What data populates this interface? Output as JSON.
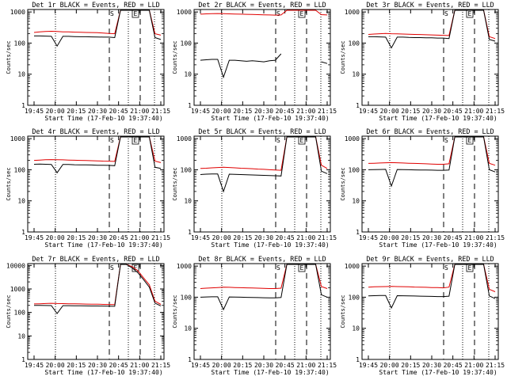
{
  "chart_data": [
    {
      "type": "line",
      "title": "Det 1r BLACK = Events, RED = LLD",
      "xlabel": "Start Time (17-Feb-10 19:37:40)",
      "ylabel": "Counts/sec",
      "yscale": "log",
      "ylim": [
        1,
        1200
      ],
      "xticks": [
        "19:45",
        "20:00",
        "20:15",
        "20:30",
        "20:45",
        "21:00",
        "21:15"
      ],
      "yticks": [
        "1",
        "10",
        "100",
        "1000"
      ],
      "markers": [
        "S",
        "E"
      ],
      "series": [
        {
          "color": "#e00000",
          "values": [
            220,
            230,
            235,
            240,
            235,
            230,
            228,
            225,
            222,
            220,
            218,
            215,
            210,
            205,
            200,
            1200,
            1200,
            1200,
            1200,
            1200,
            1200,
            200,
            180
          ]
        },
        {
          "color": "#000000",
          "values": [
            170,
            170,
            168,
            165,
            80,
            165,
            165,
            162,
            160,
            160,
            158,
            157,
            155,
            155,
            150,
            1200,
            1200,
            1200,
            1200,
            1200,
            1200,
            150,
            130
          ]
        }
      ]
    },
    {
      "type": "line",
      "title": "Det 2r BLACK = Events, RED = LLD",
      "xlabel": "Start Time (17-Feb-10 19:37:40)",
      "ylabel": "Counts/sec",
      "yscale": "log",
      "ylim": [
        1,
        1200
      ],
      "xticks": [
        "19:45",
        "20:00",
        "20:15",
        "20:30",
        "20:45",
        "21:00",
        "21:15"
      ],
      "yticks": [
        "1",
        "10",
        "100",
        "1000"
      ],
      "markers": [
        "S",
        "E"
      ],
      "series": [
        {
          "color": "#e00000",
          "values": [
            850,
            870,
            880,
            890,
            880,
            870,
            860,
            850,
            840,
            830,
            820,
            810,
            800,
            790,
            800,
            1200,
            1200,
            1200,
            1200,
            1200,
            1200,
            820,
            800
          ]
        },
        {
          "color": "#000000",
          "values": [
            28,
            29,
            30,
            30,
            8,
            28,
            28,
            27,
            26,
            27,
            26,
            25,
            27,
            28,
            45,
            null,
            null,
            null,
            null,
            null,
            null,
            25,
            22
          ]
        }
      ]
    },
    {
      "type": "line",
      "title": "Det 3r BLACK = Events, RED = LLD",
      "xlabel": "Start Time (17-Feb-10 19:37:40)",
      "ylabel": "Counts/sec",
      "yscale": "log",
      "ylim": [
        1,
        1200
      ],
      "xticks": [
        "19:45",
        "20:00",
        "20:15",
        "20:30",
        "20:45",
        "21:00",
        "21:15"
      ],
      "yticks": [
        "1",
        "10",
        "100",
        "1000"
      ],
      "markers": [
        "S",
        "E"
      ],
      "series": [
        {
          "color": "#e00000",
          "values": [
            190,
            195,
            200,
            205,
            200,
            198,
            195,
            192,
            190,
            188,
            185,
            183,
            180,
            178,
            175,
            1200,
            1200,
            1200,
            1200,
            1200,
            1200,
            160,
            140
          ]
        },
        {
          "color": "#000000",
          "values": [
            160,
            160,
            158,
            155,
            70,
            155,
            155,
            152,
            150,
            150,
            148,
            147,
            145,
            145,
            140,
            1200,
            1200,
            1200,
            1200,
            1200,
            1200,
            130,
            115
          ]
        }
      ]
    },
    {
      "type": "line",
      "title": "Det 4r BLACK = Events, RED = LLD",
      "xlabel": "Start Time (17-Feb-10 19:37:40)",
      "ylabel": "Counts/sec",
      "yscale": "log",
      "ylim": [
        1,
        1200
      ],
      "xticks": [
        "19:45",
        "20:00",
        "20:15",
        "20:30",
        "20:45",
        "21:00",
        "21:15"
      ],
      "yticks": [
        "1",
        "10",
        "100",
        "1000"
      ],
      "markers": [
        "S",
        "E"
      ],
      "series": [
        {
          "color": "#e00000",
          "values": [
            200,
            205,
            210,
            212,
            210,
            208,
            205,
            202,
            200,
            198,
            195,
            193,
            190,
            188,
            185,
            1200,
            1200,
            1200,
            1200,
            1200,
            1200,
            190,
            170
          ]
        },
        {
          "color": "#000000",
          "values": [
            150,
            152,
            150,
            148,
            80,
            148,
            147,
            145,
            144,
            143,
            142,
            140,
            140,
            138,
            135,
            1200,
            1200,
            1200,
            1200,
            1200,
            1200,
            120,
            110
          ]
        }
      ]
    },
    {
      "type": "line",
      "title": "Det 5r BLACK = Events, RED = LLD",
      "xlabel": "Start Time (17-Feb-10 19:37:40)",
      "ylabel": "Counts/sec",
      "yscale": "log",
      "ylim": [
        1,
        1200
      ],
      "xticks": [
        "19:45",
        "20:00",
        "20:15",
        "20:30",
        "20:45",
        "21:00",
        "21:15"
      ],
      "yticks": [
        "1",
        "10",
        "100",
        "1000"
      ],
      "markers": [
        "S",
        "E"
      ],
      "series": [
        {
          "color": "#e00000",
          "values": [
            110,
            112,
            115,
            118,
            120,
            118,
            115,
            112,
            110,
            108,
            105,
            103,
            100,
            98,
            96,
            1200,
            1200,
            1200,
            1200,
            1200,
            1200,
            140,
            110
          ]
        },
        {
          "color": "#000000",
          "values": [
            70,
            72,
            73,
            73,
            20,
            72,
            71,
            70,
            69,
            68,
            67,
            66,
            65,
            64,
            63,
            1200,
            1200,
            1200,
            1200,
            1200,
            1200,
            90,
            75
          ]
        }
      ]
    },
    {
      "type": "line",
      "title": "Det 6r BLACK = Events, RED = LLD",
      "xlabel": "Start Time (17-Feb-10 19:37:40)",
      "ylabel": "Counts/sec",
      "yscale": "log",
      "ylim": [
        1,
        1200
      ],
      "xticks": [
        "19:45",
        "20:00",
        "20:15",
        "20:30",
        "20:45",
        "21:00",
        "21:15"
      ],
      "yticks": [
        "1",
        "10",
        "100",
        "1000"
      ],
      "markers": [
        "S",
        "E"
      ],
      "series": [
        {
          "color": "#e00000",
          "values": [
            160,
            162,
            165,
            168,
            170,
            168,
            165,
            162,
            160,
            158,
            155,
            153,
            150,
            150,
            155,
            1200,
            1200,
            1200,
            1200,
            1200,
            1200,
            160,
            140
          ]
        },
        {
          "color": "#000000",
          "values": [
            100,
            101,
            102,
            103,
            30,
            102,
            101,
            100,
            99,
            98,
            98,
            97,
            96,
            96,
            98,
            1200,
            1200,
            1200,
            1200,
            1200,
            1200,
            100,
            85
          ]
        }
      ]
    },
    {
      "type": "line",
      "title": "Det 7r BLACK = Events, RED = LLD",
      "xlabel": "Start Time (17-Feb-10 19:37:40)",
      "ylabel": "Counts/sec",
      "yscale": "log",
      "ylim": [
        1,
        12000
      ],
      "xticks": [
        "19:45",
        "20:00",
        "20:15",
        "20:30",
        "20:45",
        "21:00",
        "21:15"
      ],
      "yticks": [
        "1",
        "10",
        "100",
        "1000",
        "10000"
      ],
      "markers": [
        "S",
        "E"
      ],
      "series": [
        {
          "color": "#e00000",
          "values": [
            230,
            235,
            240,
            245,
            240,
            238,
            235,
            232,
            230,
            228,
            225,
            223,
            220,
            218,
            215,
            12000,
            12000,
            9000,
            6000,
            3000,
            1500,
            300,
            220
          ]
        },
        {
          "color": "#000000",
          "values": [
            200,
            200,
            198,
            196,
            90,
            195,
            194,
            193,
            192,
            190,
            189,
            188,
            187,
            185,
            183,
            12000,
            12000,
            8000,
            5000,
            2500,
            1200,
            250,
            190
          ]
        }
      ]
    },
    {
      "type": "line",
      "title": "Det 8r BLACK = Events, RED = LLD",
      "xlabel": "Start Time (17-Feb-10 19:37:40)",
      "ylabel": "Counts/sec",
      "yscale": "log",
      "ylim": [
        1,
        1200
      ],
      "xticks": [
        "19:45",
        "20:00",
        "20:15",
        "20:30",
        "20:45",
        "21:00",
        "21:15"
      ],
      "yticks": [
        "1",
        "10",
        "100",
        "1000"
      ],
      "markers": [
        "S",
        "E"
      ],
      "series": [
        {
          "color": "#e00000",
          "values": [
            190,
            195,
            200,
            205,
            210,
            208,
            205,
            202,
            200,
            198,
            195,
            193,
            190,
            190,
            195,
            1200,
            1200,
            1200,
            1200,
            1200,
            1200,
            220,
            190
          ]
        },
        {
          "color": "#000000",
          "values": [
            100,
            102,
            103,
            103,
            40,
            102,
            101,
            100,
            99,
            98,
            97,
            96,
            95,
            95,
            98,
            1200,
            1200,
            1200,
            1200,
            1200,
            1200,
            120,
            100
          ]
        }
      ]
    },
    {
      "type": "line",
      "title": "Det 9r BLACK = Events, RED = LLD",
      "xlabel": "Start Time (17-Feb-10 19:37:40)",
      "ylabel": "Counts/sec",
      "yscale": "log",
      "ylim": [
        1,
        1200
      ],
      "xticks": [
        "19:45",
        "20:00",
        "20:15",
        "20:30",
        "20:45",
        "21:00",
        "21:15"
      ],
      "yticks": [
        "1",
        "10",
        "100",
        "1000"
      ],
      "markers": [
        "S",
        "E"
      ],
      "series": [
        {
          "color": "#e00000",
          "values": [
            210,
            215,
            218,
            220,
            222,
            220,
            218,
            215,
            212,
            210,
            208,
            205,
            203,
            200,
            210,
            1200,
            1200,
            1200,
            1200,
            1200,
            1200,
            180,
            150
          ]
        },
        {
          "color": "#000000",
          "values": [
            110,
            112,
            113,
            113,
            45,
            112,
            111,
            110,
            109,
            108,
            107,
            106,
            105,
            105,
            108,
            1200,
            1200,
            1200,
            1200,
            1200,
            1200,
            110,
            90
          ]
        }
      ]
    }
  ]
}
